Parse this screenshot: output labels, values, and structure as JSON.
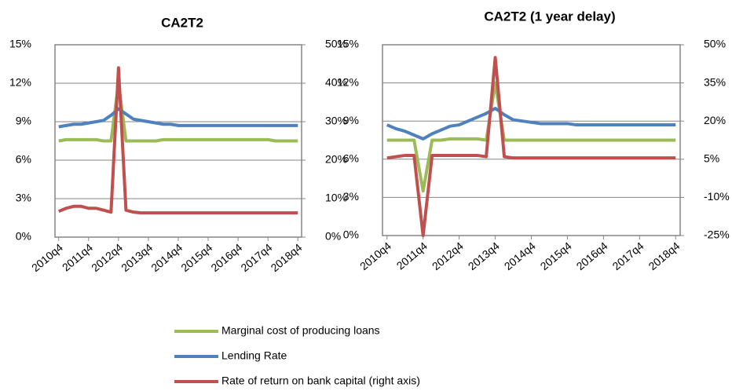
{
  "chart_data": [
    {
      "type": "line",
      "title": "CA2T2",
      "categories": [
        "2010q4",
        null,
        null,
        null,
        "2011q4",
        null,
        null,
        null,
        "2012q4",
        null,
        null,
        null,
        "2013q4",
        null,
        null,
        null,
        "2014q4",
        null,
        null,
        null,
        "2015q4",
        null,
        null,
        null,
        "2016q4",
        null,
        null,
        null,
        "2017q4",
        null,
        null,
        null,
        "2018q4"
      ],
      "series": [
        {
          "name": "Marginal cost of producing loans",
          "color": "#9bbb59",
          "values": [
            7.5,
            7.6,
            7.6,
            7.6,
            7.6,
            7.6,
            7.5,
            7.5,
            12,
            7.5,
            7.5,
            7.5,
            7.5,
            7.5,
            7.6,
            7.6,
            7.6,
            7.6,
            7.6,
            7.6,
            7.6,
            7.6,
            7.6,
            7.6,
            7.6,
            7.6,
            7.6,
            7.6,
            7.6,
            7.5,
            7.5,
            7.5,
            7.5
          ]
        },
        {
          "name": "Lending Rate",
          "color": "#4f81bd",
          "values": [
            8.6,
            8.7,
            8.8,
            8.8,
            8.9,
            9.0,
            9.1,
            9.5,
            10.0,
            9.6,
            9.2,
            9.1,
            9.0,
            8.9,
            8.8,
            8.8,
            8.7,
            8.7,
            8.7,
            8.7,
            8.7,
            8.7,
            8.7,
            8.7,
            8.7,
            8.7,
            8.7,
            8.7,
            8.7,
            8.7,
            8.7,
            8.7,
            8.7
          ]
        },
        {
          "name": "Rate of return on bank capital (right axis)",
          "color": "#c0504d",
          "axis": "y2",
          "values": [
            6.7,
            7.5,
            8,
            8,
            7.5,
            7.5,
            7,
            6.5,
            44,
            7,
            6.5,
            6.3,
            6.3,
            6.3,
            6.3,
            6.3,
            6.3,
            6.3,
            6.3,
            6.3,
            6.3,
            6.3,
            6.3,
            6.3,
            6.3,
            6.3,
            6.3,
            6.3,
            6.3,
            6.3,
            6.3,
            6.3,
            6.3
          ]
        }
      ],
      "ylim": [
        0,
        15
      ],
      "yticks": [
        {
          "value": 0,
          "label": "0%"
        },
        {
          "value": 3,
          "label": "3%"
        },
        {
          "value": 6,
          "label": "6%"
        },
        {
          "value": 9,
          "label": "9%"
        },
        {
          "value": 12,
          "label": "12%"
        },
        {
          "value": 15,
          "label": "15%"
        }
      ],
      "y2lim": [
        0,
        50
      ],
      "y2ticks": [
        {
          "value": 0,
          "label": "0%"
        },
        {
          "value": 10,
          "label": "10%"
        },
        {
          "value": 20,
          "label": "20%"
        },
        {
          "value": 30,
          "label": "30%"
        },
        {
          "value": 40,
          "label": "40%"
        },
        {
          "value": 50,
          "label": "50%"
        }
      ],
      "grid": true
    },
    {
      "type": "line",
      "title": "CA2T2 (1 year delay)",
      "categories": [
        "2010q4",
        null,
        null,
        null,
        "2011q4",
        null,
        null,
        null,
        "2012q4",
        null,
        null,
        null,
        "2013q4",
        null,
        null,
        null,
        "2014q4",
        null,
        null,
        null,
        "2015q4",
        null,
        null,
        null,
        "2016q4",
        null,
        null,
        null,
        "2017q4",
        null,
        null,
        null,
        "2018q4"
      ],
      "series": [
        {
          "name": "Marginal cost of producing loans",
          "color": "#9bbb59",
          "values": [
            7.5,
            7.5,
            7.5,
            7.5,
            3.5,
            7.5,
            7.5,
            7.6,
            7.6,
            7.6,
            7.6,
            7.5,
            12,
            7.5,
            7.5,
            7.5,
            7.5,
            7.5,
            7.5,
            7.5,
            7.5,
            7.5,
            7.5,
            7.5,
            7.5,
            7.5,
            7.5,
            7.5,
            7.5,
            7.5,
            7.5,
            7.5,
            7.5
          ]
        },
        {
          "name": "Lending Rate",
          "color": "#4f81bd",
          "values": [
            8.7,
            8.4,
            8.2,
            7.9,
            7.6,
            8.0,
            8.3,
            8.6,
            8.7,
            9.0,
            9.3,
            9.6,
            10.0,
            9.5,
            9.1,
            9.0,
            8.9,
            8.8,
            8.8,
            8.8,
            8.8,
            8.7,
            8.7,
            8.7,
            8.7,
            8.7,
            8.7,
            8.7,
            8.7,
            8.7,
            8.7,
            8.7,
            8.7
          ]
        },
        {
          "name": "Rate of return on bank capital (right axis)",
          "color": "#c0504d",
          "axis": "y2",
          "values": [
            5.5,
            6,
            6.5,
            6.5,
            -25,
            6.5,
            6.5,
            6.5,
            6.5,
            6.5,
            6.5,
            6,
            45,
            6,
            5.5,
            5.5,
            5.5,
            5.5,
            5.5,
            5.5,
            5.5,
            5.5,
            5.5,
            5.5,
            5.5,
            5.5,
            5.5,
            5.5,
            5.5,
            5.5,
            5.5,
            5.5,
            5.5
          ]
        }
      ],
      "ylim": [
        0,
        15
      ],
      "yticks": [
        {
          "value": 0,
          "label": "0%"
        },
        {
          "value": 3,
          "label": "3%"
        },
        {
          "value": 6,
          "label": "6%"
        },
        {
          "value": 9,
          "label": "9%"
        },
        {
          "value": 12,
          "label": "12%"
        },
        {
          "value": 15,
          "label": "15%"
        }
      ],
      "y2lim": [
        -25,
        50
      ],
      "y2ticks": [
        {
          "value": -25,
          "label": "-25%"
        },
        {
          "value": -10,
          "label": "-10%"
        },
        {
          "value": 5,
          "label": "5%"
        },
        {
          "value": 20,
          "label": "20%"
        },
        {
          "value": 35,
          "label": "35%"
        },
        {
          "value": 50,
          "label": "50%"
        }
      ],
      "grid": true
    }
  ]
}
